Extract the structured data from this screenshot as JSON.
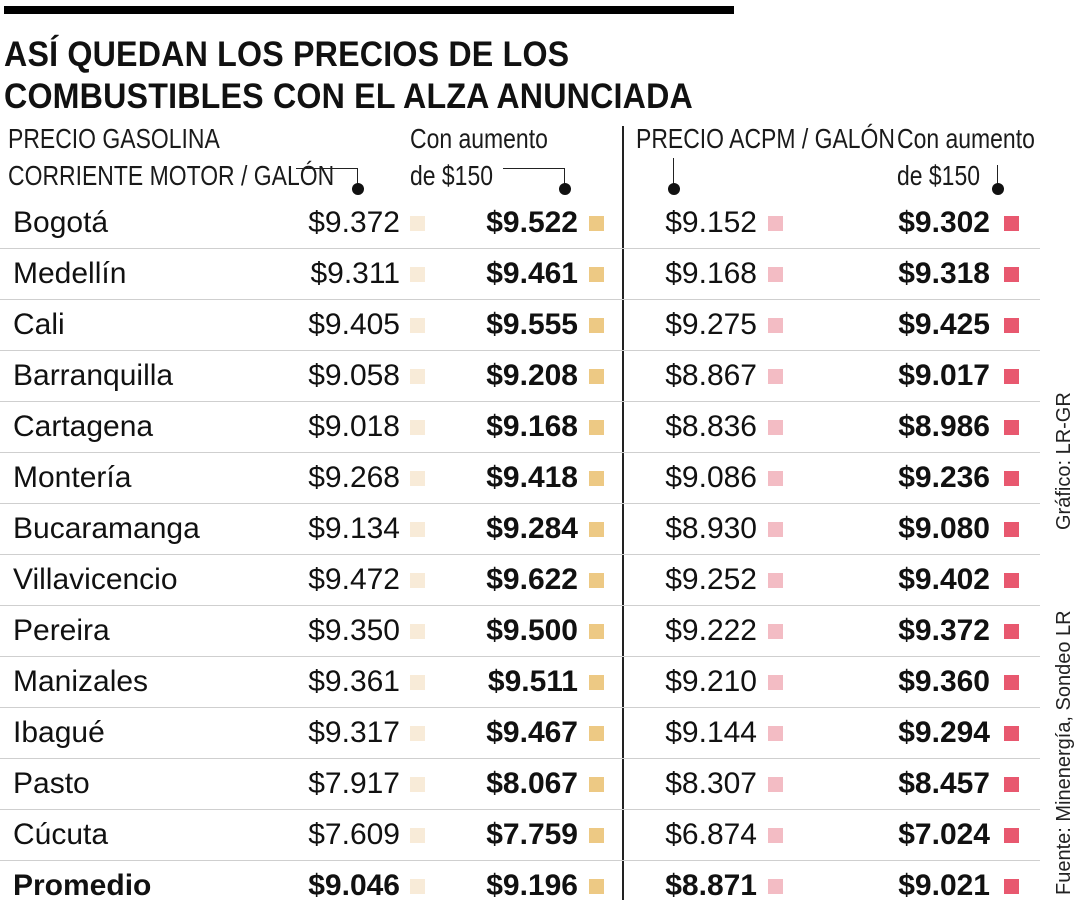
{
  "title": {
    "line1": "ASÍ QUEDAN LOS PRECIOS DE LOS",
    "line2": "COMBUSTIBLES CON EL ALZA ANUNCIADA"
  },
  "headers": {
    "gasolina_line1": "PRECIO GASOLINA",
    "gasolina_line2": "CORRIENTE MOTOR / GALÓN",
    "aumento_gasolina_line1": "Con aumento",
    "aumento_gasolina_line2": "de $150",
    "acpm": "PRECIO ACPM / GALÓN",
    "aumento_acpm_line1": "Con aumento",
    "aumento_acpm_line2": "de $150"
  },
  "colors": {
    "gasolina": "#f8ebd8",
    "gasolina_aumento": "#edc984",
    "acpm": "#f3bcc4",
    "acpm_aumento": "#e8586f"
  },
  "rows": [
    {
      "city": "Bogotá",
      "gasolina": "$9.372",
      "gasolina_aumento": "$9.522",
      "acpm": "$9.152",
      "acpm_aumento": "$9.302"
    },
    {
      "city": "Medellín",
      "gasolina": "$9.311",
      "gasolina_aumento": "$9.461",
      "acpm": "$9.168",
      "acpm_aumento": "$9.318"
    },
    {
      "city": "Cali",
      "gasolina": "$9.405",
      "gasolina_aumento": "$9.555",
      "acpm": "$9.275",
      "acpm_aumento": "$9.425"
    },
    {
      "city": "Barranquilla",
      "gasolina": "$9.058",
      "gasolina_aumento": "$9.208",
      "acpm": "$8.867",
      "acpm_aumento": "$9.017"
    },
    {
      "city": "Cartagena",
      "gasolina": "$9.018",
      "gasolina_aumento": "$9.168",
      "acpm": "$8.836",
      "acpm_aumento": "$8.986"
    },
    {
      "city": "Montería",
      "gasolina": "$9.268",
      "gasolina_aumento": "$9.418",
      "acpm": "$9.086",
      "acpm_aumento": "$9.236"
    },
    {
      "city": "Bucaramanga",
      "gasolina": "$9.134",
      "gasolina_aumento": "$9.284",
      "acpm": "$8.930",
      "acpm_aumento": "$9.080"
    },
    {
      "city": "Villavicencio",
      "gasolina": "$9.472",
      "gasolina_aumento": "$9.622",
      "acpm": "$9.252",
      "acpm_aumento": "$9.402"
    },
    {
      "city": "Pereira",
      "gasolina": "$9.350",
      "gasolina_aumento": "$9.500",
      "acpm": "$9.222",
      "acpm_aumento": "$9.372"
    },
    {
      "city": "Manizales",
      "gasolina": "$9.361",
      "gasolina_aumento": "$9.511",
      "acpm": "$9.210",
      "acpm_aumento": "$9.360"
    },
    {
      "city": "Ibagué",
      "gasolina": "$9.317",
      "gasolina_aumento": "$9.467",
      "acpm": "$9.144",
      "acpm_aumento": "$9.294"
    },
    {
      "city": "Pasto",
      "gasolina": "$7.917",
      "gasolina_aumento": "$8.067",
      "acpm": "$8.307",
      "acpm_aumento": "$8.457"
    },
    {
      "city": "Cúcuta",
      "gasolina": "$7.609",
      "gasolina_aumento": "$7.759",
      "acpm": "$6.874",
      "acpm_aumento": "$7.024"
    }
  ],
  "total": {
    "city": "Promedio",
    "gasolina": "$9.046",
    "gasolina_aumento": "$9.196",
    "acpm": "$8.871",
    "acpm_aumento": "$9.021"
  },
  "credits": {
    "grafico": "Gráfico: LR-GR",
    "fuente": "Fuente: Minenergía, Sondeo LR"
  }
}
